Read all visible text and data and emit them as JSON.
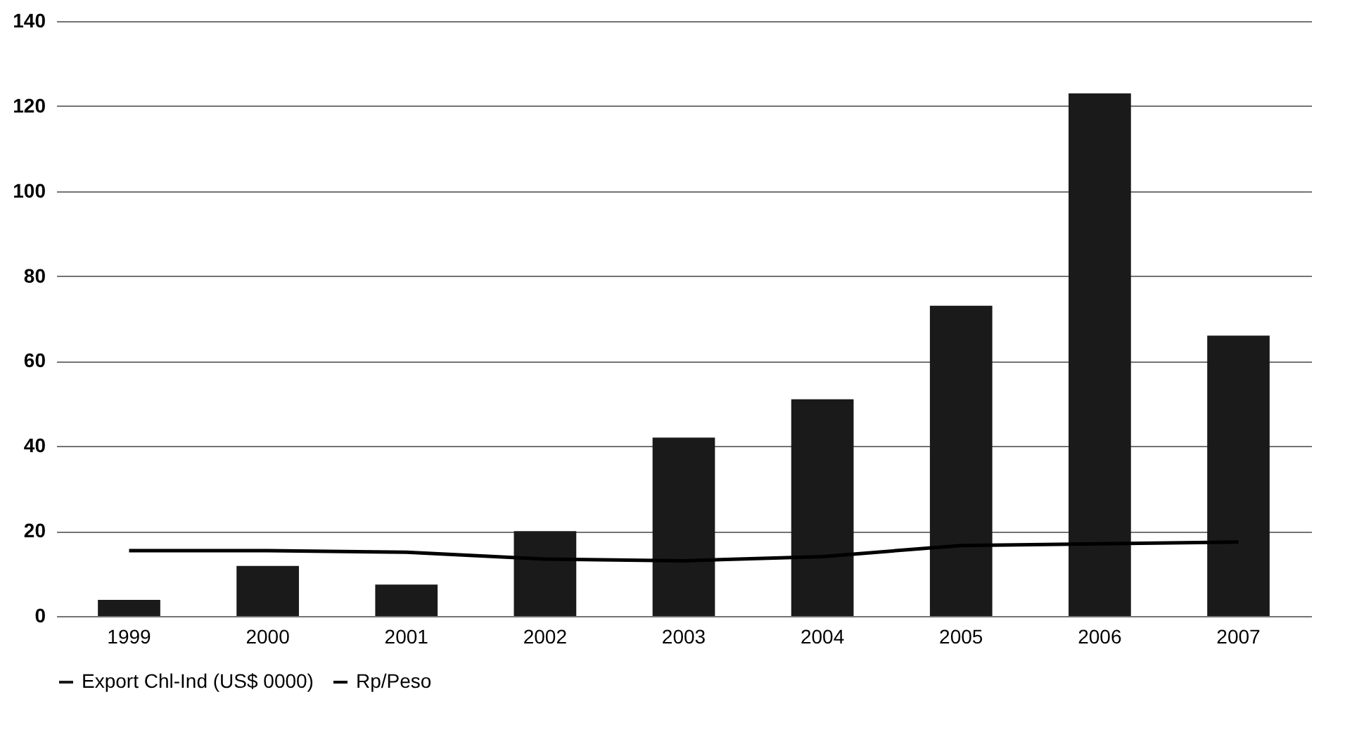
{
  "chart_data": {
    "type": "bar",
    "categories": [
      "1999",
      "2000",
      "2001",
      "2002",
      "2003",
      "2004",
      "2005",
      "2006",
      "2007"
    ],
    "series": [
      {
        "name": "Export Chl-Ind (US$ 0000)",
        "color": "#1a1a1a",
        "values": [
          3.8,
          11.8,
          7.4,
          20,
          42,
          51,
          73,
          123,
          66
        ]
      },
      {
        "name": "Rp/Peso",
        "type": "line",
        "color": "#000000",
        "values": [
          15.4,
          15.4,
          15,
          13.4,
          13,
          14,
          16.6,
          17,
          17.4
        ]
      }
    ],
    "ylim": [
      0,
      140
    ],
    "yticks": [
      0,
      20,
      40,
      60,
      80,
      100,
      120,
      140
    ],
    "grid": "y",
    "legend": "bottom"
  }
}
